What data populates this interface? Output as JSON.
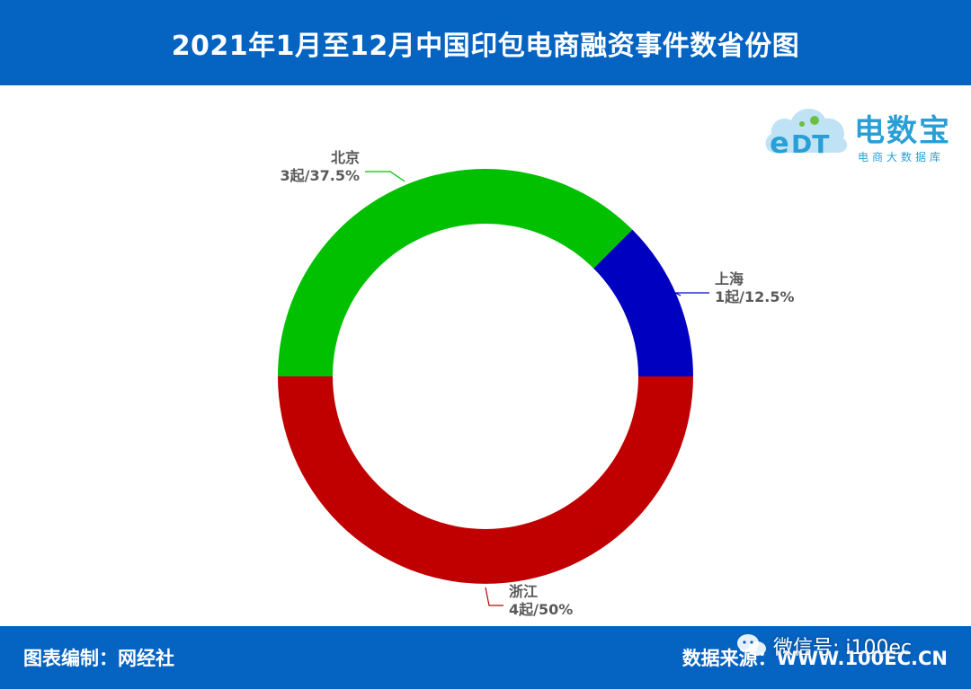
{
  "header": {
    "title": "2021年1月至12月中国印包电商融资事件数省份图"
  },
  "footer": {
    "left_label": "图表编制：网经社",
    "right_label": "数据来源：WWW.100EC.CN"
  },
  "watermark": {
    "wechat_text": "微信号: i100ec"
  },
  "logo": {
    "name": "电数宝",
    "subtitle": "电商大数据库",
    "icon": "edt-cloud-icon"
  },
  "colors": {
    "header_bg": "#0563c1",
    "zhejiang": "#c00000",
    "beijing": "#00c000",
    "shanghai": "#0000c0"
  },
  "chart_data": {
    "type": "pie",
    "donut": true,
    "title": "",
    "series": [
      {
        "name": "",
        "slices": [
          {
            "label": "上海",
            "value": 1,
            "percent": 12.5,
            "text": "1起/12.5%",
            "color": "#0000c0"
          },
          {
            "label": "浙江",
            "value": 4,
            "percent": 50,
            "text": "4起/50%",
            "color": "#c00000"
          },
          {
            "label": "北京",
            "value": 3,
            "percent": 37.5,
            "text": "3起/37.5%",
            "color": "#00c000"
          }
        ]
      }
    ],
    "legend": "none"
  }
}
